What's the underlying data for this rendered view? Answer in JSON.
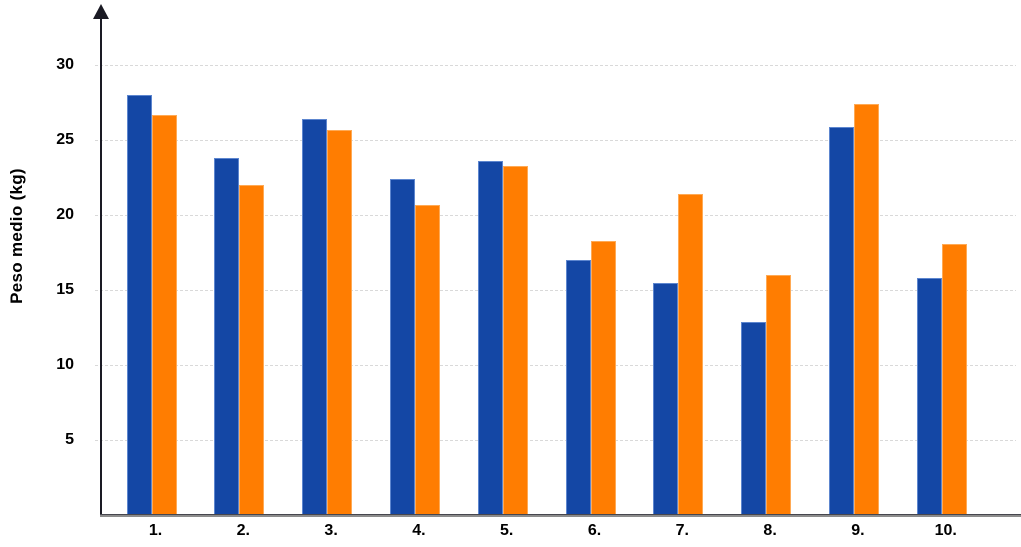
{
  "chart_data": {
    "type": "bar",
    "categories": [
      "1.",
      "2.",
      "3.",
      "4.",
      "5.",
      "6.",
      "7.",
      "8.",
      "9.",
      "10."
    ],
    "series": [
      {
        "name": "series-blue",
        "color": "#1447A5",
        "border_color": "#5d86cf",
        "values": [
          28.0,
          23.8,
          26.4,
          22.4,
          23.6,
          17.0,
          15.5,
          12.9,
          25.9,
          15.8
        ]
      },
      {
        "name": "series-orange",
        "color": "#FF7D01",
        "border_color": "#ffaa55",
        "values": [
          26.7,
          22.0,
          25.7,
          20.7,
          23.3,
          18.3,
          21.4,
          16.0,
          27.4,
          18.1
        ]
      }
    ],
    "title": "",
    "xlabel": "",
    "ylabel": "Peso medio (kg)",
    "yticks": [
      5,
      10,
      15,
      20,
      25,
      30
    ],
    "ylim": [
      0,
      33
    ],
    "grid": "horizontal-dashed",
    "legend": "none",
    "axis_colors": {
      "y_axis": "#1a1a24",
      "x_axis": "#7f7f7f",
      "gridline": "#d9d9d9",
      "tick_label": "#000000"
    }
  }
}
